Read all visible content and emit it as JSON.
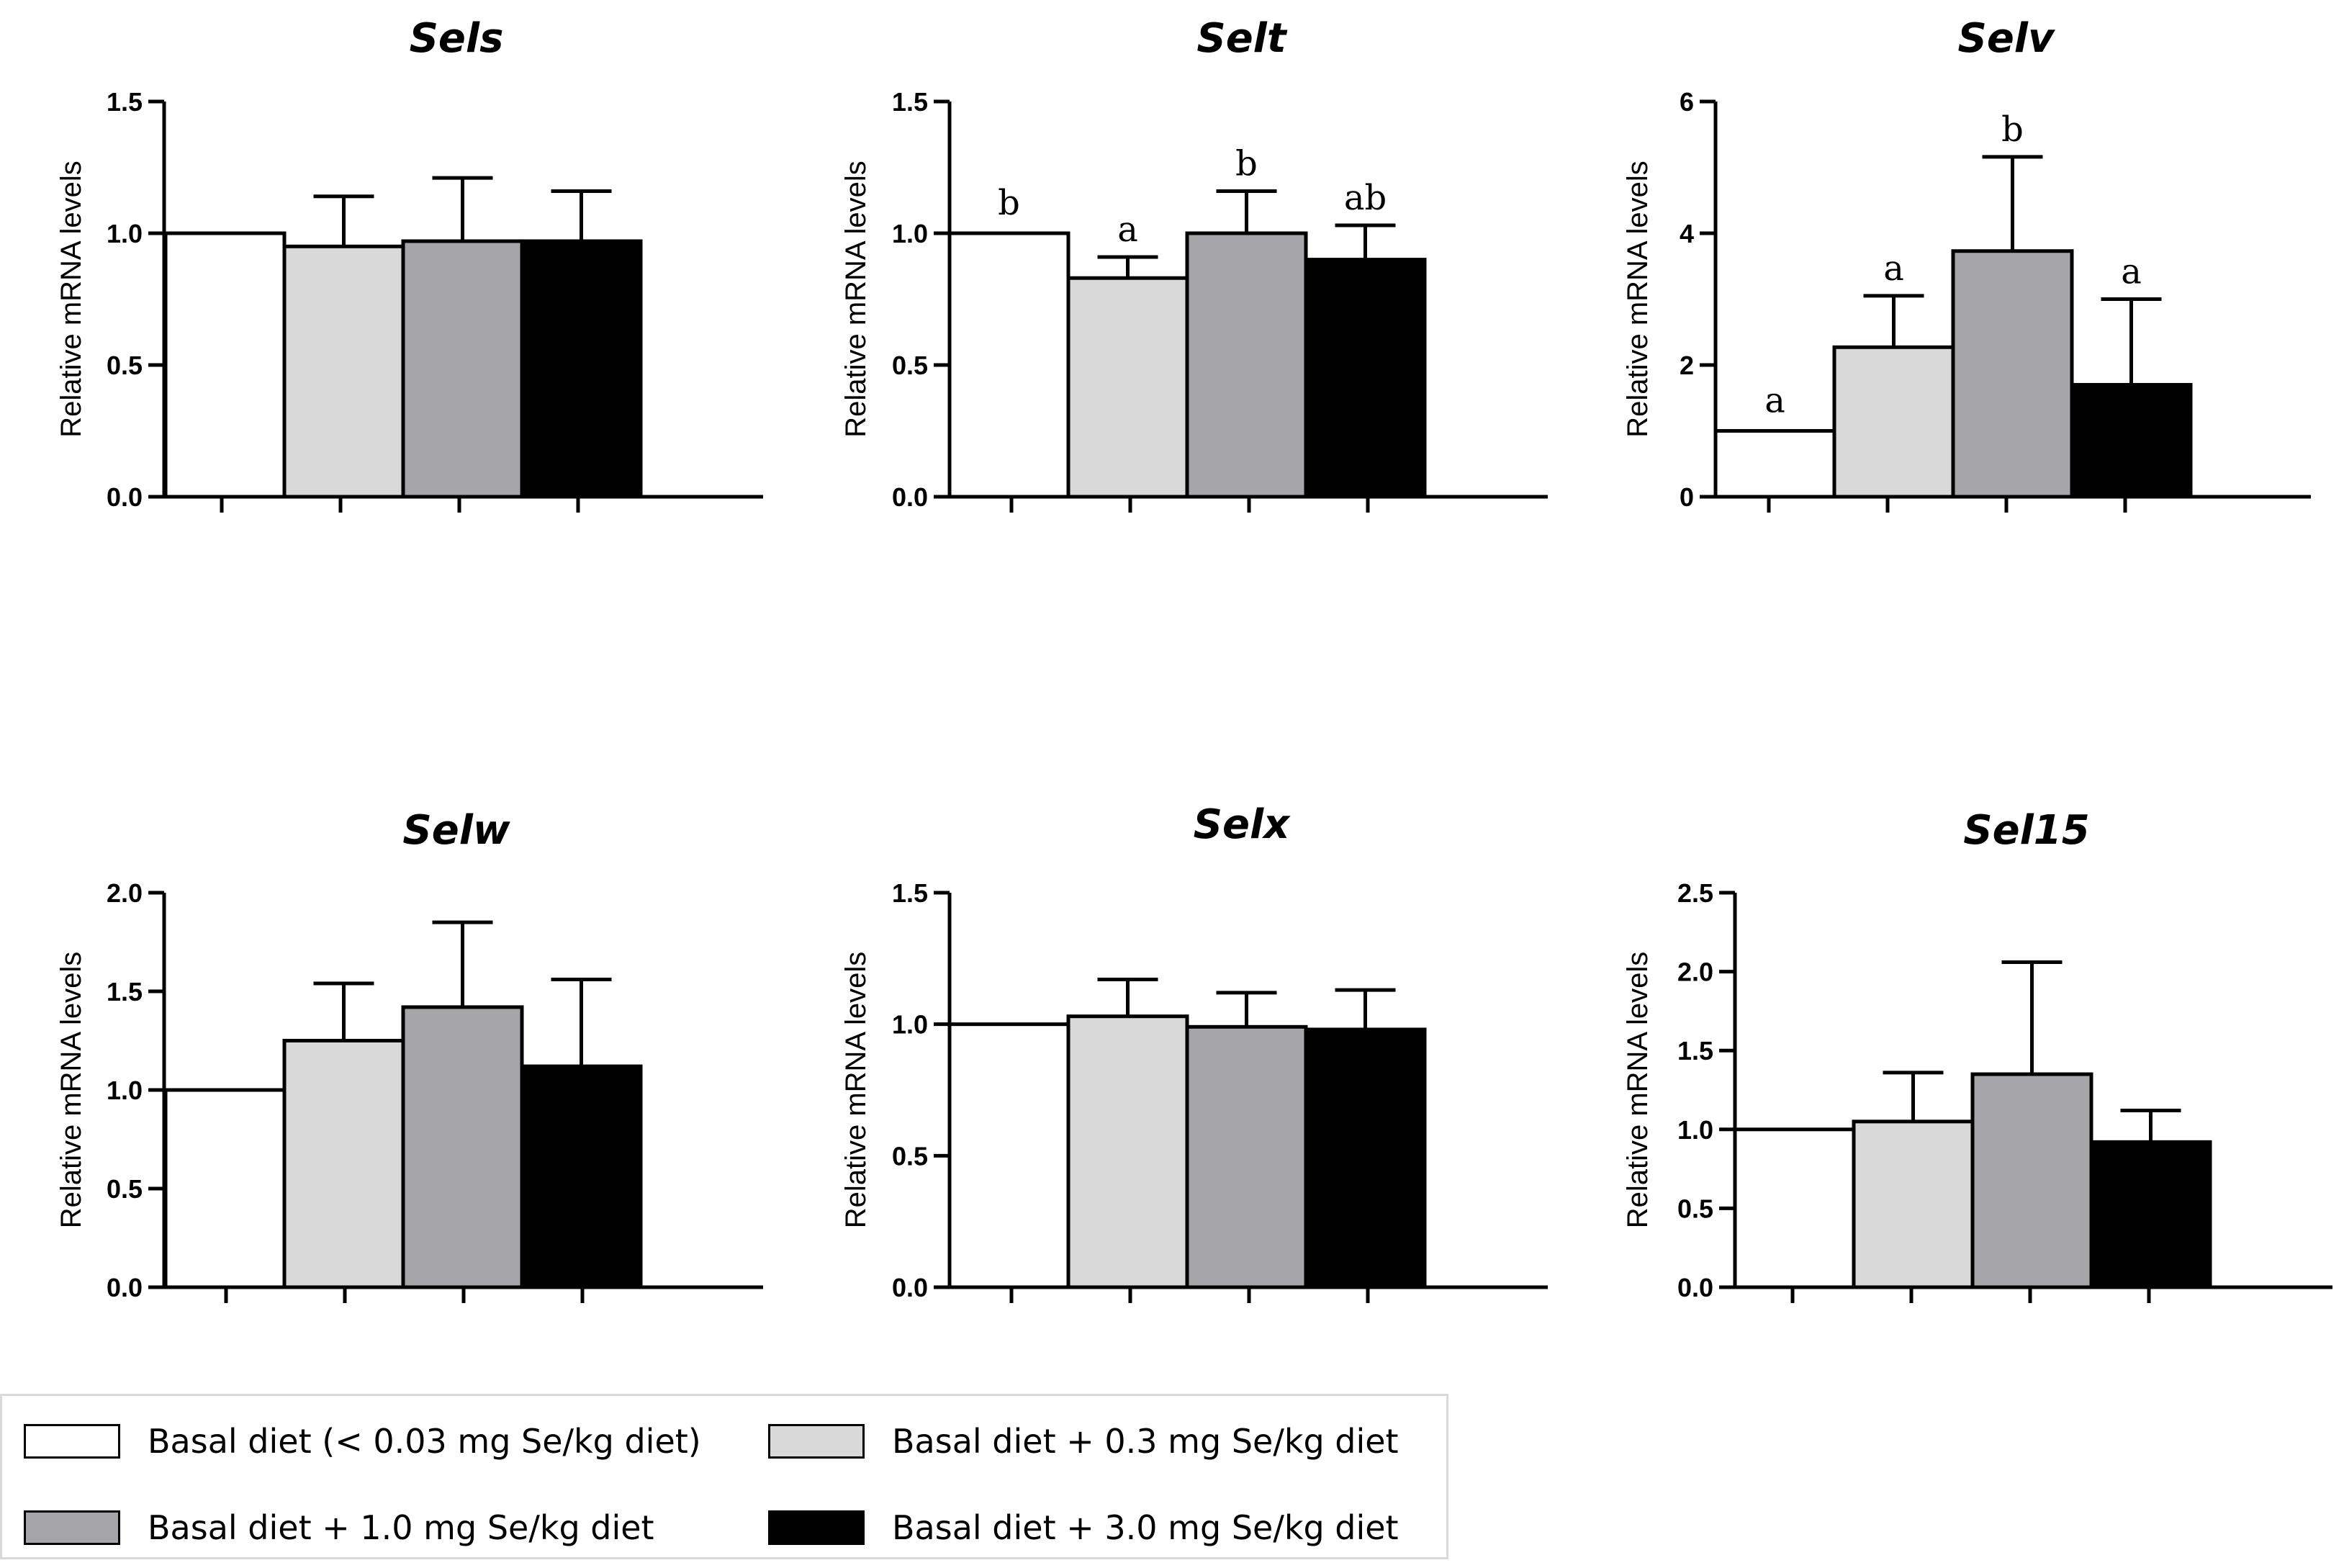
{
  "chart_data": [
    {
      "type": "bar",
      "title": "Sels",
      "ylabel": "Relative mRNA levels",
      "ylim": [
        0,
        1.5
      ],
      "yticks": [
        "0.0",
        "0.5",
        "1.0",
        "1.5"
      ],
      "categories": [
        "Basal diet",
        "+0.3",
        "+1.0",
        "+3.0"
      ],
      "values": [
        1.0,
        0.95,
        0.97,
        0.97
      ],
      "errors": [
        0.0,
        0.19,
        0.24,
        0.19
      ],
      "sig_labels": [
        "",
        "",
        "",
        ""
      ]
    },
    {
      "type": "bar",
      "title": "Selt",
      "ylabel": "Relative mRNA levels",
      "ylim": [
        0,
        1.5
      ],
      "yticks": [
        "0.0",
        "0.5",
        "1.0",
        "1.5"
      ],
      "categories": [
        "Basal diet",
        "+0.3",
        "+1.0",
        "+3.0"
      ],
      "values": [
        1.0,
        0.83,
        1.0,
        0.9
      ],
      "errors": [
        0.0,
        0.08,
        0.16,
        0.13
      ],
      "sig_labels": [
        "b",
        "a",
        "b",
        "ab"
      ]
    },
    {
      "type": "bar",
      "title": "Selv",
      "ylabel": "Relative mRNA levels",
      "ylim": [
        0,
        6
      ],
      "yticks": [
        "0",
        "2",
        "4",
        "6"
      ],
      "categories": [
        "Basal diet",
        "+0.3",
        "+1.0",
        "+3.0"
      ],
      "values": [
        1.0,
        2.27,
        3.73,
        1.7
      ],
      "errors": [
        0.0,
        0.78,
        1.43,
        1.3
      ],
      "sig_labels": [
        "a",
        "a",
        "b",
        "a"
      ]
    },
    {
      "type": "bar",
      "title": "Selw",
      "ylabel": "Relative mRNA levels",
      "ylim": [
        0,
        2.0
      ],
      "yticks": [
        "0.0",
        "0.5",
        "1.0",
        "1.5",
        "2.0"
      ],
      "categories": [
        "Basal diet",
        "+0.3",
        "+1.0",
        "+3.0"
      ],
      "values": [
        1.0,
        1.25,
        1.42,
        1.12
      ],
      "errors": [
        0.0,
        0.29,
        0.43,
        0.44
      ],
      "sig_labels": [
        "",
        "",
        "",
        ""
      ]
    },
    {
      "type": "bar",
      "title": "Selx",
      "ylabel": "Relative mRNA levels",
      "ylim": [
        0,
        1.5
      ],
      "yticks": [
        "0.0",
        "0.5",
        "1.0",
        "1.5"
      ],
      "categories": [
        "Basal diet",
        "+0.3",
        "+1.0",
        "+3.0"
      ],
      "values": [
        1.0,
        1.03,
        0.99,
        0.98
      ],
      "errors": [
        0.0,
        0.14,
        0.13,
        0.15
      ],
      "sig_labels": [
        "",
        "",
        "",
        ""
      ]
    },
    {
      "type": "bar",
      "title": "Sel15",
      "ylabel": "Relative mRNA levels",
      "ylim": [
        0,
        2.5
      ],
      "yticks": [
        "0.0",
        "0.5",
        "1.0",
        "1.5",
        "2.0",
        "2.5"
      ],
      "categories": [
        "Basal diet",
        "+0.3",
        "+1.0",
        "+3.0"
      ],
      "values": [
        1.0,
        1.05,
        1.35,
        0.92
      ],
      "errors": [
        0.0,
        0.31,
        0.71,
        0.2
      ],
      "sig_labels": [
        "",
        "",
        "",
        ""
      ]
    }
  ],
  "legend": [
    {
      "label": "Basal diet (< 0.03 mg Se/kg diet)",
      "color": "#ffffff"
    },
    {
      "label": "Basal diet + 0.3 mg Se/kg diet",
      "color": "#d9d9d9"
    },
    {
      "label": "Basal diet + 1.0 mg Se/kg diet",
      "color": "#a6a5aa"
    },
    {
      "label": "Basal diet + 3.0 mg Se/kg diet",
      "color": "#000000"
    }
  ]
}
